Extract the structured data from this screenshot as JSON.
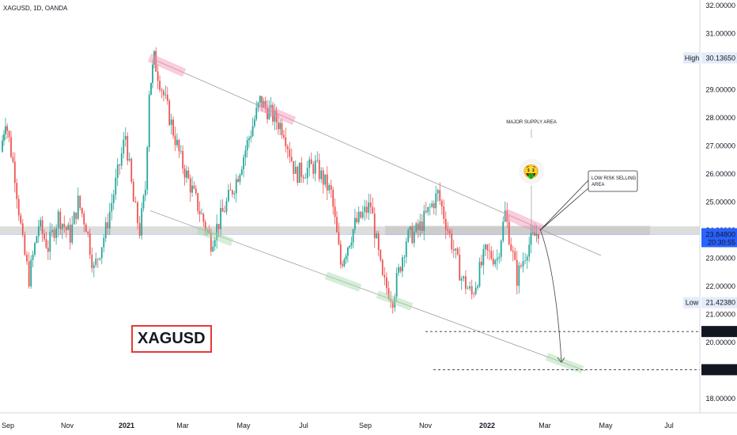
{
  "header": {
    "symbol_line": "XAGUSD, 1D, OANDA"
  },
  "chart_data": {
    "type": "candlestick",
    "symbol": "XAGUSD",
    "interval": "1D",
    "source": "OANDA",
    "ylim": [
      17.5,
      32.2
    ],
    "price_ticks": [
      "18.00000",
      "20.00000",
      "21.00000",
      "22.00000",
      "23.00000",
      "24.00000",
      "25.00000",
      "26.00000",
      "27.00000",
      "28.00000",
      "29.00000",
      "31.00000",
      "32.00000"
    ],
    "time_ticks": [
      "Sep",
      "Nov",
      "2021",
      "Mar",
      "May",
      "Jul",
      "Sep",
      "Nov",
      "2022",
      "Mar",
      "May",
      "Jul"
    ],
    "bold_time_ticks": [
      "2021",
      "2022"
    ],
    "high": {
      "label": "High",
      "value": "30.13650"
    },
    "low": {
      "label": "Low",
      "value": "21.42380"
    },
    "last_price": {
      "value": "23.84800",
      "countdown": "20:30:55"
    },
    "target_levels": [
      {
        "value": "20.39579",
        "y": 20.396
      },
      {
        "value": "19.03749",
        "y": 19.037
      }
    ],
    "annotations": {
      "supply_label": "MAJOR SUPPLY AREA",
      "emoji": "🤑",
      "callout": "LOW RISK SELLING AREA",
      "symbol_tag": "XAGUSD"
    },
    "channel": {
      "upper": [
        [
          193,
          30.1
        ],
        [
          760,
          23.1
        ]
      ],
      "lower": [
        [
          190,
          24.7
        ],
        [
          740,
          19.0
        ]
      ]
    },
    "anchors": [
      {
        "x": 190,
        "y": 29.0
      },
      {
        "x": 196,
        "y": 30.1
      },
      {
        "x": 230,
        "y": 26.5
      },
      {
        "x": 268,
        "y": 23.6
      },
      {
        "x": 300,
        "y": 25.8
      },
      {
        "x": 330,
        "y": 28.6
      },
      {
        "x": 360,
        "y": 27.6
      },
      {
        "x": 375,
        "y": 26.0
      },
      {
        "x": 400,
        "y": 26.3
      },
      {
        "x": 420,
        "y": 25.3
      },
      {
        "x": 432,
        "y": 22.8
      },
      {
        "x": 450,
        "y": 24.2
      },
      {
        "x": 470,
        "y": 24.9
      },
      {
        "x": 485,
        "y": 22.2
      },
      {
        "x": 498,
        "y": 21.6
      },
      {
        "x": 515,
        "y": 23.7
      },
      {
        "x": 530,
        "y": 24.0
      },
      {
        "x": 555,
        "y": 25.3
      },
      {
        "x": 570,
        "y": 23.8
      },
      {
        "x": 585,
        "y": 22.3
      },
      {
        "x": 598,
        "y": 21.7
      },
      {
        "x": 615,
        "y": 23.2
      },
      {
        "x": 630,
        "y": 23.0
      },
      {
        "x": 640,
        "y": 24.6
      },
      {
        "x": 655,
        "y": 22.3
      },
      {
        "x": 668,
        "y": 23.4
      },
      {
        "x": 682,
        "y": 24.0
      }
    ],
    "colors": {
      "up": "#26a69a",
      "down": "#ef5350",
      "accent": "#2962ff"
    }
  }
}
